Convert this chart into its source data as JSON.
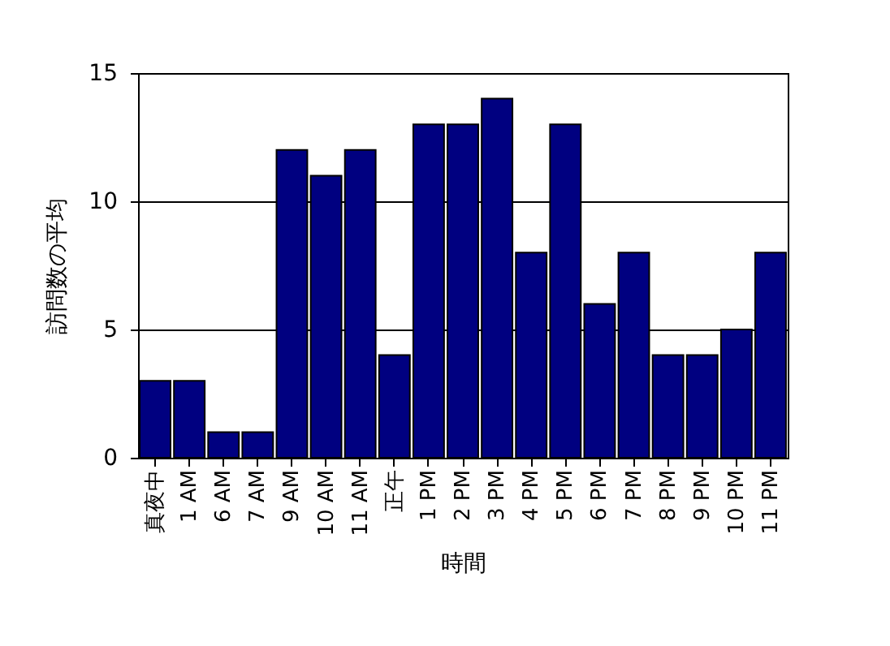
{
  "chart_data": {
    "type": "bar",
    "xlabel": "時間",
    "ylabel": "訪問数の平均",
    "categories": [
      "真夜中",
      "1 AM",
      "6 AM",
      "7 AM",
      "9 AM",
      "10 AM",
      "11 AM",
      "正午",
      "1 PM",
      "2 PM",
      "3 PM",
      "4 PM",
      "5 PM",
      "6 PM",
      "7 PM",
      "8 PM",
      "9 PM",
      "10 PM",
      "11 PM"
    ],
    "values": [
      3,
      3,
      1,
      1,
      12,
      11,
      12,
      4,
      13,
      13,
      14,
      8,
      13,
      6,
      8,
      4,
      4,
      5,
      8
    ],
    "color": "#000080",
    "ylim": [
      0,
      15
    ],
    "yticks": [
      0,
      5,
      10,
      15
    ],
    "grid": "y"
  }
}
